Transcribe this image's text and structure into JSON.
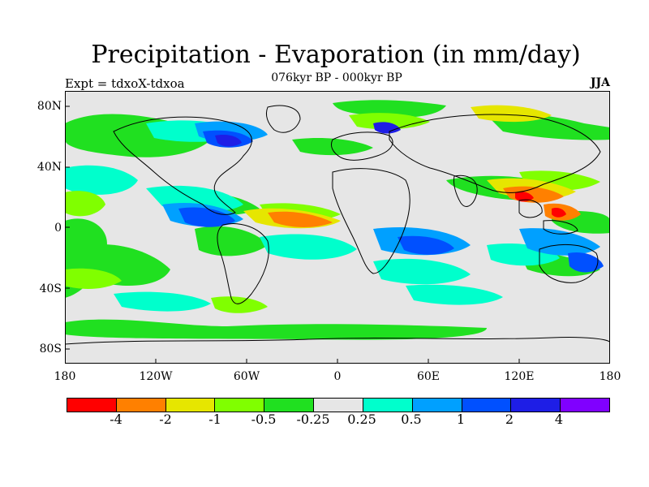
{
  "figure": {
    "title": "Precipitation - Evaporation (in mm/day)",
    "subtitle": "076kyr BP - 000kyr BP",
    "left_label": "Expt = tdxoX-tdxoa",
    "right_label": "JJA"
  },
  "axes": {
    "lat_ticks": [
      "80N",
      "40N",
      "0",
      "40S",
      "80S"
    ],
    "lon_ticks": [
      "180",
      "120W",
      "60W",
      "0",
      "60E",
      "120E",
      "180"
    ]
  },
  "legend": {
    "colors": [
      "#ff0000",
      "#ff8000",
      "#e6e600",
      "#80ff00",
      "#20e020",
      "#e6e6e6",
      "#00ffcc",
      "#00a0ff",
      "#0050ff",
      "#1e1ee6",
      "#8000ff"
    ],
    "labels": [
      "-4",
      "-2",
      "-1",
      "-0.5",
      "-0.25",
      "0.25",
      "0.5",
      "1",
      "2",
      "4"
    ]
  }
}
